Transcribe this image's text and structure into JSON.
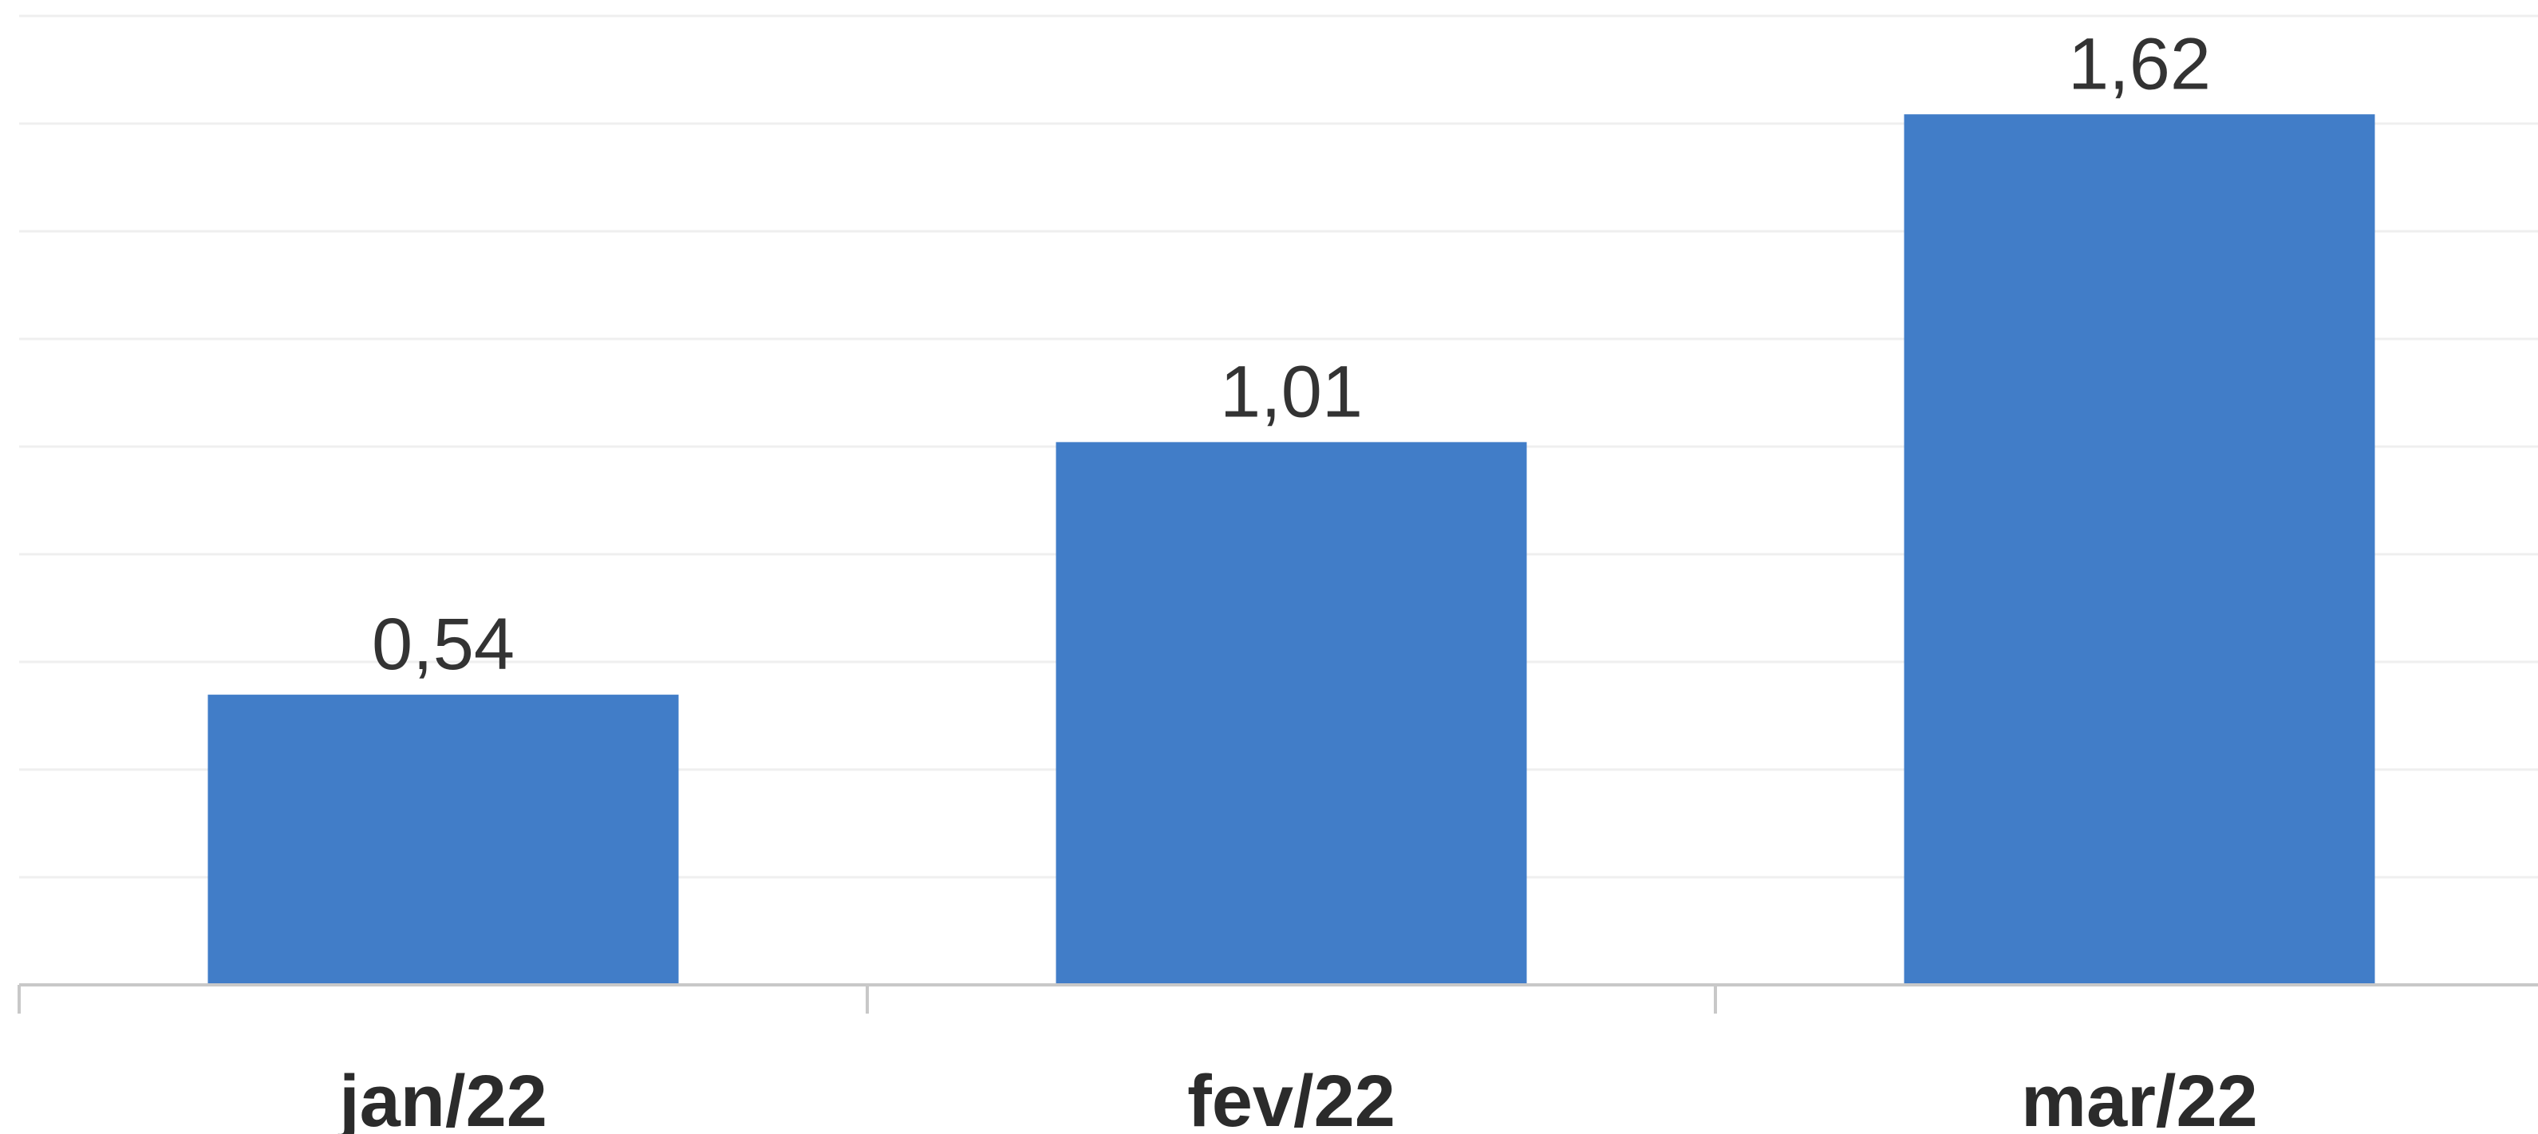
{
  "chart_data": {
    "type": "bar",
    "title": "",
    "xlabel": "",
    "ylabel": "",
    "categories": [
      "jan/22",
      "fev/22",
      "mar/22"
    ],
    "values": [
      0.54,
      1.01,
      1.62
    ],
    "data_labels": [
      "0,54",
      "1,01",
      "1,62"
    ],
    "ylim": [
      0,
      1.8
    ],
    "grid": true,
    "legend": "none",
    "colors": {
      "bar": "#417dc8",
      "grid": "#efefef",
      "axis": "#c8c8c8",
      "label": "#333333"
    }
  }
}
